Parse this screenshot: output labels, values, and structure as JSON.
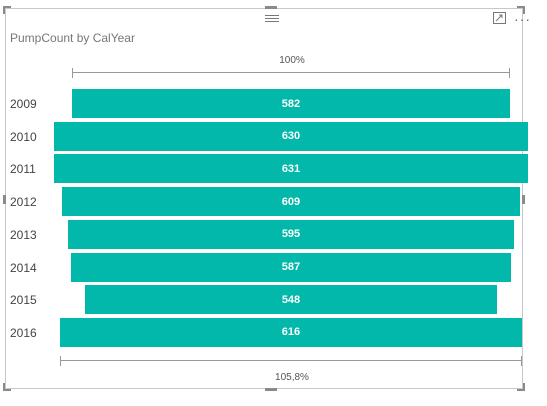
{
  "visual": {
    "title": "PumpCount by CalYear",
    "more_label": "···",
    "icons": {
      "focus": "focus-mode-icon",
      "more": "more-options-icon",
      "gripper": "drag-gripper-icon"
    }
  },
  "chart_data": {
    "type": "funnel",
    "title": "PumpCount by CalYear",
    "categories": [
      "2009",
      "2010",
      "2011",
      "2012",
      "2013",
      "2014",
      "2015",
      "2016"
    ],
    "values": [
      582,
      630,
      631,
      609,
      595,
      587,
      548,
      616
    ],
    "value_labels": [
      "582",
      "630",
      "631",
      "609",
      "595",
      "587",
      "548",
      "616"
    ],
    "top_label": "100%",
    "bottom_label": "105,8%",
    "bar_color": "#01b8aa"
  }
}
